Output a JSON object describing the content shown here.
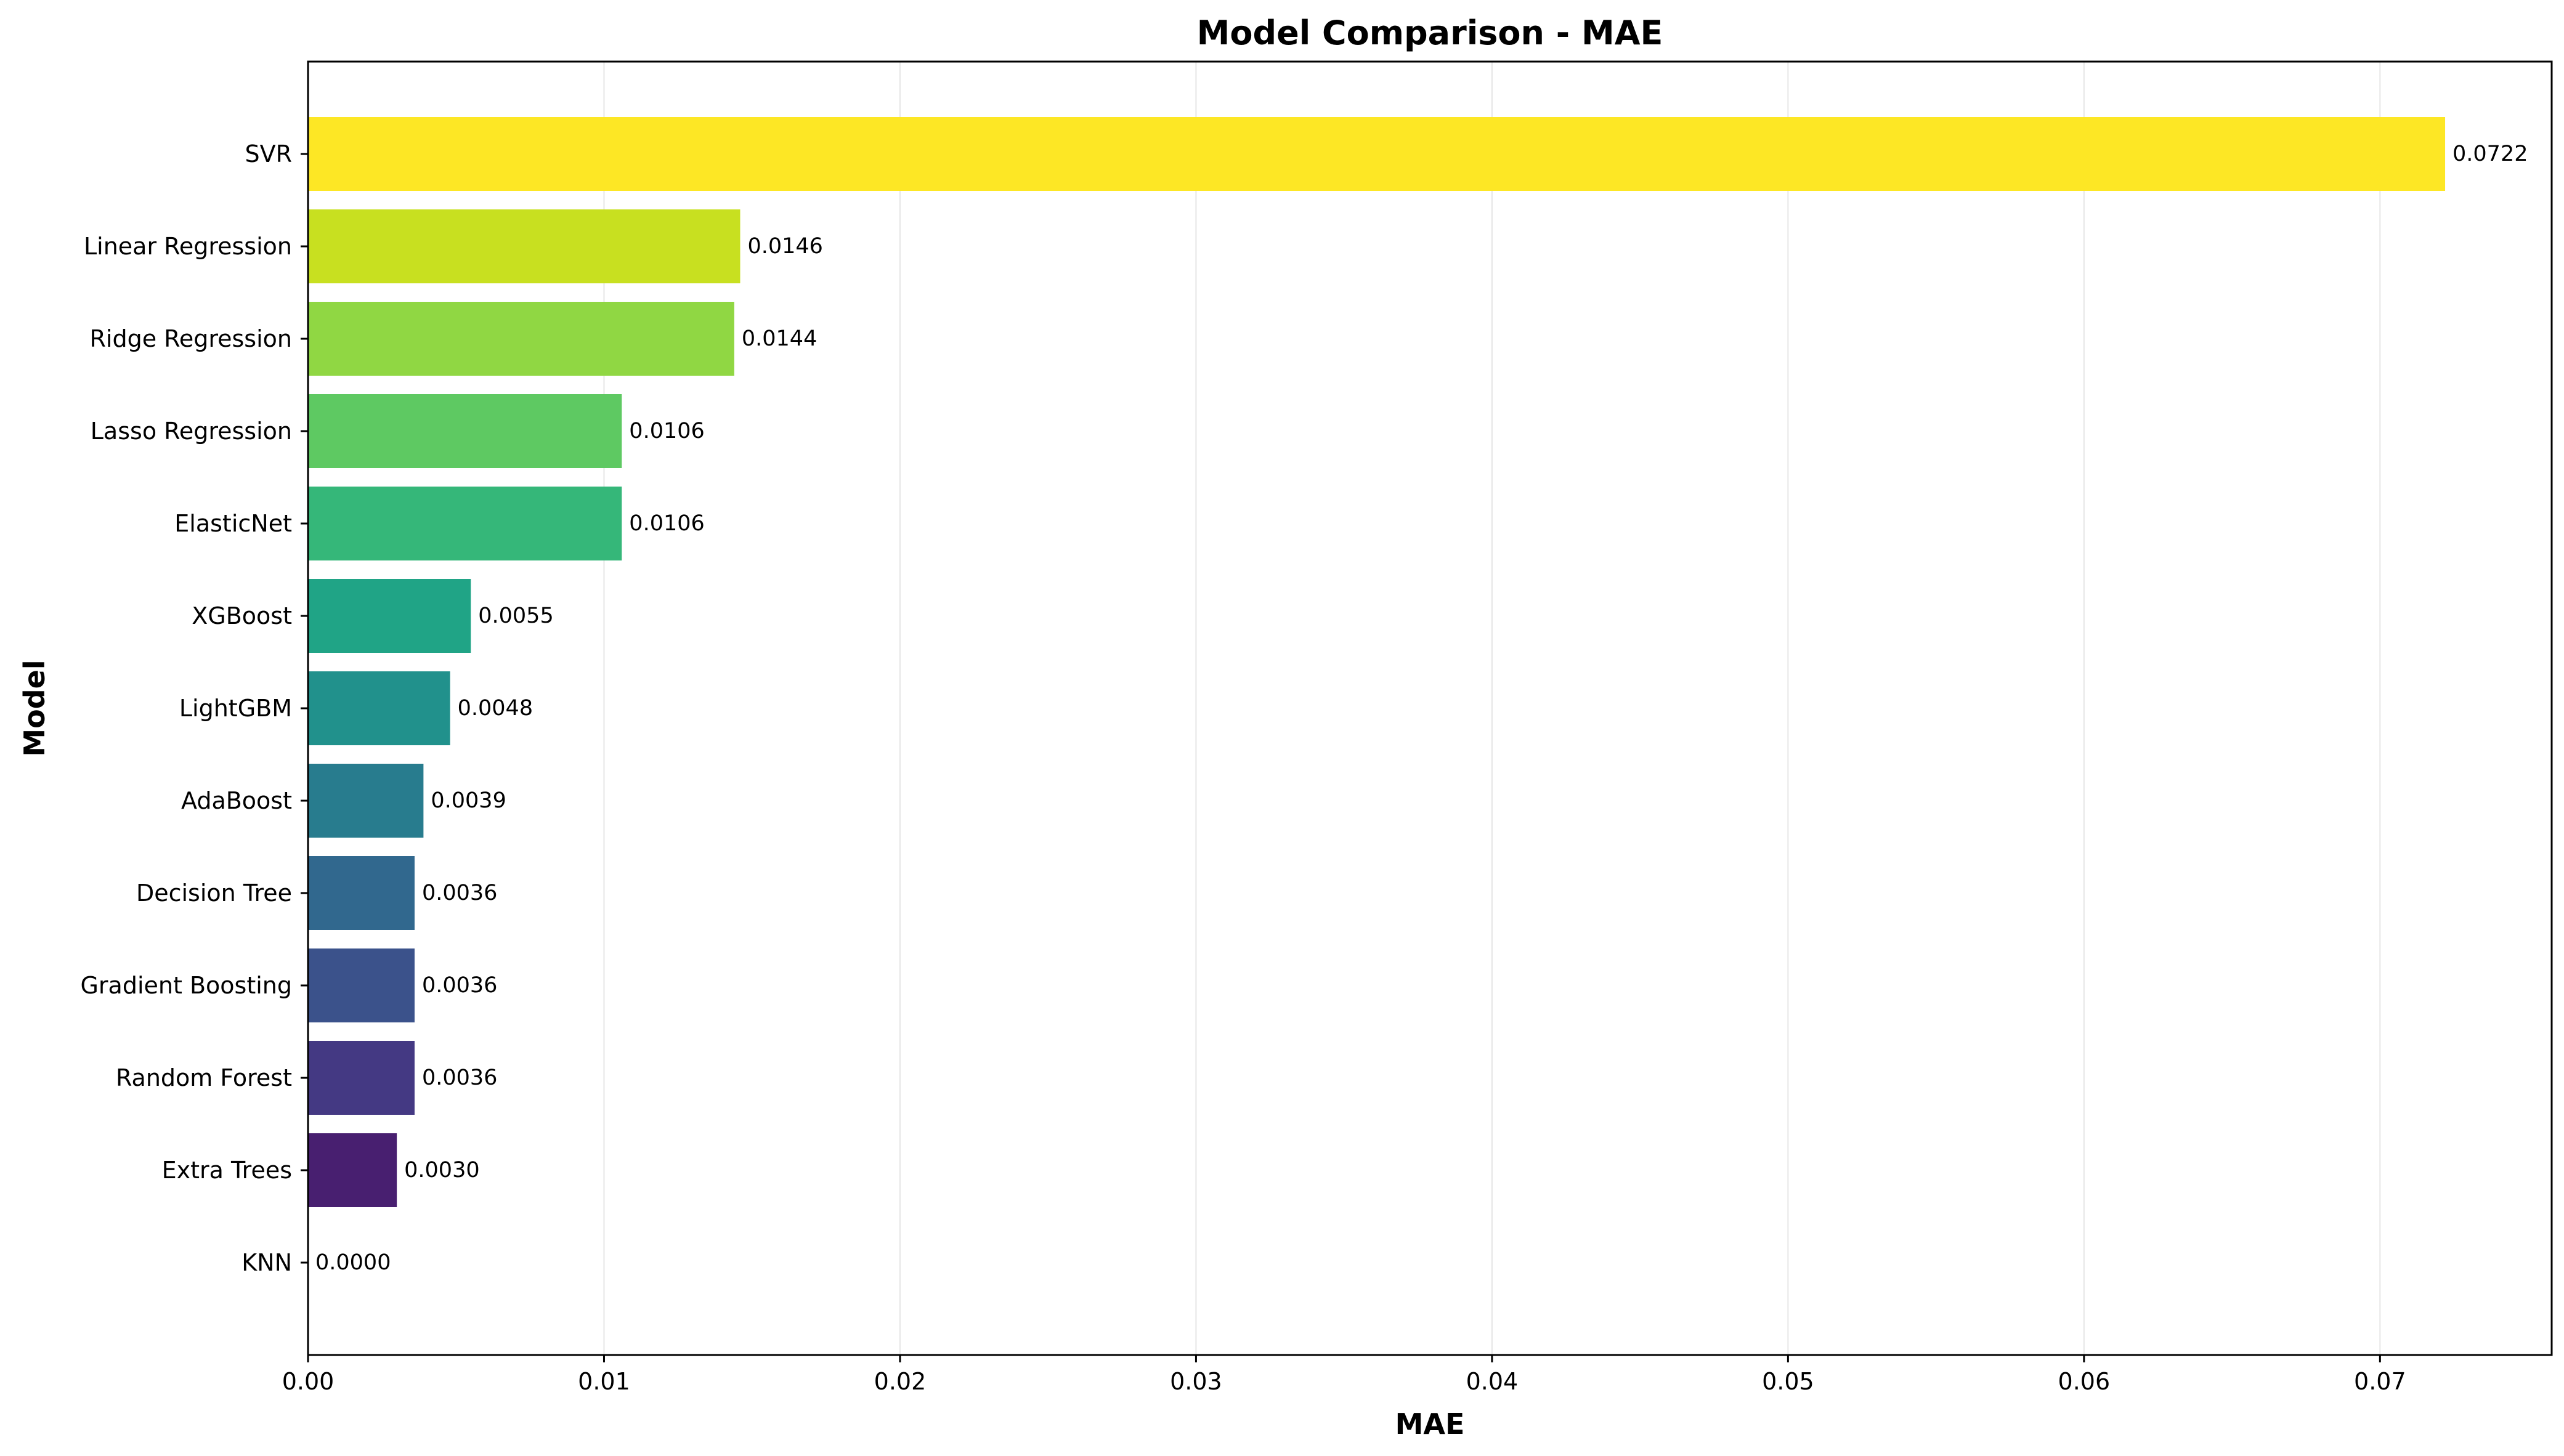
{
  "chart_data": {
    "type": "bar",
    "orientation": "horizontal",
    "title": "Model Comparison - MAE",
    "xlabel": "MAE",
    "ylabel": "Model",
    "xlim": [
      0,
      0.0758
    ],
    "xticks": [
      0.0,
      0.01,
      0.02,
      0.03,
      0.04,
      0.05,
      0.06,
      0.07
    ],
    "xtick_labels": [
      "0.00",
      "0.01",
      "0.02",
      "0.03",
      "0.04",
      "0.05",
      "0.06",
      "0.07"
    ],
    "grid": "vertical",
    "categories": [
      "SVR",
      "Linear Regression",
      "Ridge Regression",
      "Lasso Regression",
      "ElasticNet",
      "XGBoost",
      "LightGBM",
      "AdaBoost",
      "Decision Tree",
      "Gradient Boosting",
      "Random Forest",
      "Extra Trees",
      "KNN"
    ],
    "values": [
      0.0722,
      0.0146,
      0.0144,
      0.0106,
      0.0106,
      0.0055,
      0.0048,
      0.0039,
      0.0036,
      0.0036,
      0.0036,
      0.003,
      0.0
    ],
    "value_labels": [
      "0.0722",
      "0.0146",
      "0.0144",
      "0.0106",
      "0.0106",
      "0.0055",
      "0.0048",
      "0.0039",
      "0.0036",
      "0.0036",
      "0.0036",
      "0.0030",
      "0.0000"
    ],
    "colors": [
      "#fde725",
      "#c8e020",
      "#90d743",
      "#5ec962",
      "#35b779",
      "#20a486",
      "#21918c",
      "#287c8e",
      "#31688e",
      "#3b528b",
      "#443983",
      "#481f70",
      "#440154"
    ]
  }
}
